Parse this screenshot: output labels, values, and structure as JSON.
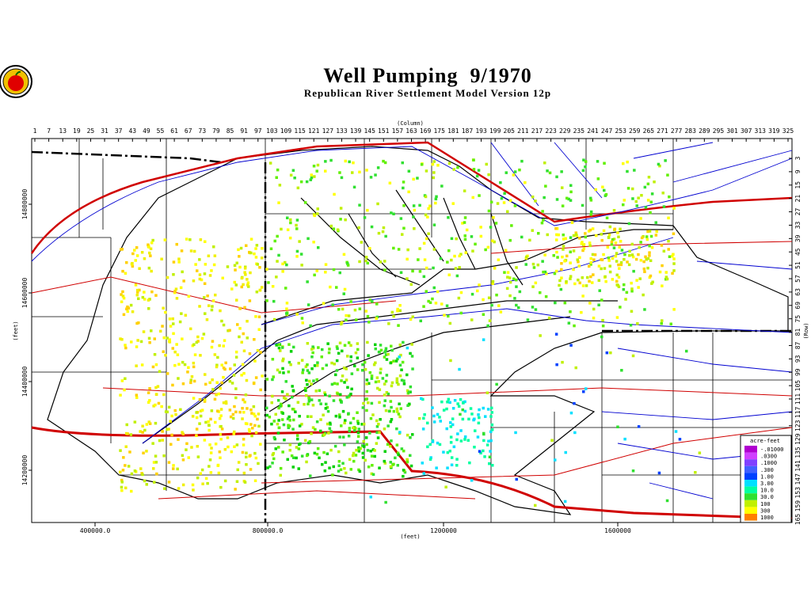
{
  "header": {
    "title": "Well Pumping  9/1970",
    "subtitle": "Republican River Settlement Model Version 12p"
  },
  "axes": {
    "column_label": "(Column)",
    "row_label": "(Row)",
    "x_label": "(feet)",
    "y_label": "(feet)",
    "columns": [
      1,
      7,
      13,
      19,
      25,
      31,
      37,
      43,
      49,
      55,
      61,
      67,
      73,
      79,
      85,
      91,
      97,
      103,
      109,
      115,
      121,
      127,
      133,
      139,
      145,
      151,
      157,
      163,
      169,
      175,
      181,
      187,
      193,
      199,
      205,
      211,
      217,
      223,
      229,
      235,
      241,
      247,
      253,
      259,
      265,
      271,
      277,
      283,
      289,
      295,
      301,
      307,
      313,
      319,
      325
    ],
    "rows": [
      3,
      9,
      15,
      21,
      27,
      33,
      39,
      45,
      51,
      57,
      63,
      69,
      75,
      81,
      87,
      93,
      99,
      105,
      111,
      117,
      123,
      129,
      135,
      141,
      147,
      153,
      159,
      165
    ],
    "x_ticks": [
      "400000.0",
      "800000.0",
      "1200000",
      "1600000"
    ],
    "y_ticks": [
      "14800000",
      "14600000",
      "14400000",
      "14200000"
    ]
  },
  "legend": {
    "title": "acre-feet",
    "items": [
      {
        "label": "-.01000",
        "color": "#b000d0"
      },
      {
        "label": ".0300",
        "color": "#d040ff"
      },
      {
        "label": ".1000",
        "color": "#8040ff"
      },
      {
        "label": ".300",
        "color": "#4060ff"
      },
      {
        "label": "1.00",
        "color": "#0040ff"
      },
      {
        "label": "3.00",
        "color": "#00e0ff"
      },
      {
        "label": "10.0",
        "color": "#00ffa0"
      },
      {
        "label": "30.0",
        "color": "#30e030"
      },
      {
        "label": "100",
        "color": "#c0f000"
      },
      {
        "label": "300",
        "color": "#ffff00"
      },
      {
        "label": "1000",
        "color": "#ff8000"
      }
    ]
  }
}
